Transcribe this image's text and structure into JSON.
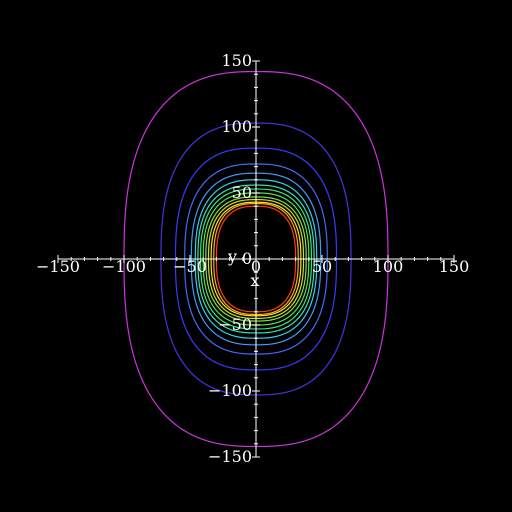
{
  "chart_data": {
    "type": "contour",
    "title": "",
    "xlabel": "x",
    "ylabel": "y",
    "xlim": [
      -150,
      150
    ],
    "ylim": [
      -150,
      150
    ],
    "x_ticks": [
      -150,
      -100,
      -50,
      0,
      50,
      100,
      150
    ],
    "y_ticks": [
      -150,
      -100,
      -50,
      0,
      50,
      100,
      150
    ],
    "x_tick_labels": [
      "−150",
      "−100",
      "−50",
      "0",
      "50",
      "100",
      "150"
    ],
    "y_tick_labels": [
      "−150",
      "−100",
      "−50",
      "0",
      "50",
      "100",
      "150"
    ],
    "minor_tick_step": 10,
    "grid": false,
    "legend": "none",
    "contours": [
      {
        "a": 100,
        "b": 142,
        "color": "#cc33dd"
      },
      {
        "a": 72,
        "b": 103,
        "color": "#4f2fe0"
      },
      {
        "a": 61,
        "b": 84,
        "color": "#3a3aff"
      },
      {
        "a": 54,
        "b": 72,
        "color": "#3f6cff"
      },
      {
        "a": 49,
        "b": 65,
        "color": "#3f9cff"
      },
      {
        "a": 46,
        "b": 60,
        "color": "#35d0ef"
      },
      {
        "a": 44,
        "b": 56,
        "color": "#34e2b8"
      },
      {
        "a": 42,
        "b": 53,
        "color": "#3fe37c"
      },
      {
        "a": 40,
        "b": 50,
        "color": "#55e24c"
      },
      {
        "a": 38,
        "b": 47,
        "color": "#8be33b"
      },
      {
        "a": 36,
        "b": 45,
        "color": "#c7e12e"
      },
      {
        "a": 34,
        "b": 43,
        "color": "#ffe02a"
      },
      {
        "a": 32,
        "b": 42,
        "color": "#ffb000"
      },
      {
        "a": 30,
        "b": 40,
        "color": "#ff3a22"
      }
    ]
  },
  "colors": {
    "background": "#000000",
    "axes": "#ffffff"
  }
}
